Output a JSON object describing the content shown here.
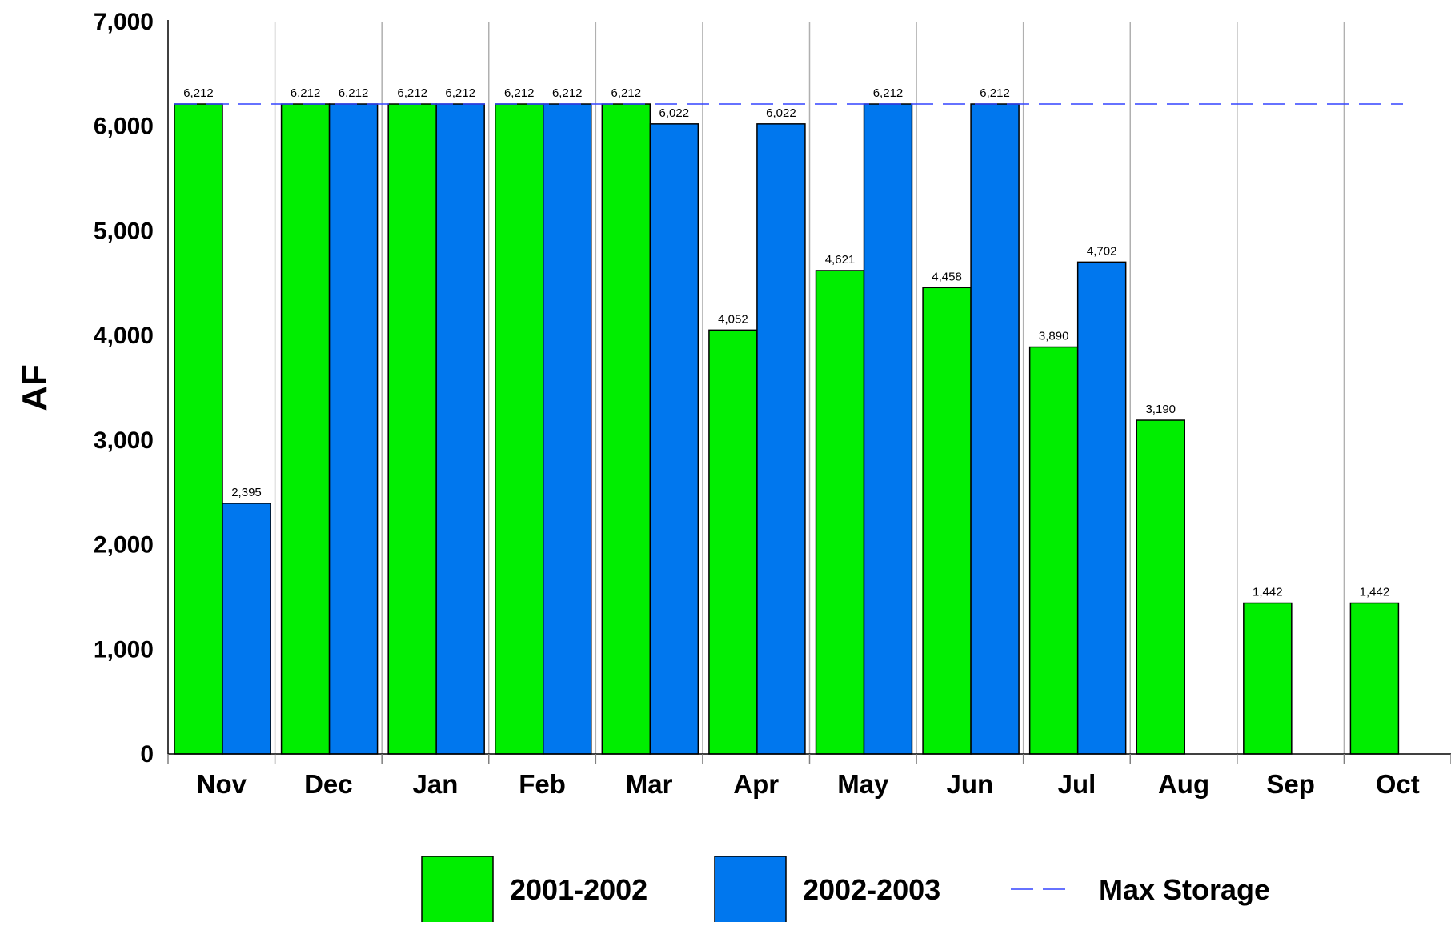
{
  "chart_data": {
    "type": "bar",
    "title": "",
    "xlabel": "",
    "ylabel": "AF",
    "ylim": [
      0,
      7000
    ],
    "yticks": [
      0,
      1000,
      2000,
      3000,
      4000,
      5000,
      6000,
      7000
    ],
    "ytick_labels": [
      "0",
      "1,000",
      "2,000",
      "3,000",
      "4,000",
      "5,000",
      "6,000",
      "7,000"
    ],
    "categories": [
      "Nov",
      "Dec",
      "Jan",
      "Feb",
      "Mar",
      "Apr",
      "May",
      "Jun",
      "Jul",
      "Aug",
      "Sep",
      "Oct"
    ],
    "series": [
      {
        "name": "2001-2002",
        "color": "#00ee00",
        "values": [
          6212,
          6212,
          6212,
          6212,
          6212,
          4052,
          4621,
          4458,
          3890,
          3190,
          1442,
          1442
        ],
        "labels": [
          "6,212",
          "6,212",
          "6,212",
          "6,212",
          "6,212",
          "4,052",
          "4,621",
          "4,458",
          "3,890",
          "3,190",
          "1,442",
          "1,442"
        ]
      },
      {
        "name": "2002-2003",
        "color": "#0077ee",
        "values": [
          2395,
          6212,
          6212,
          6212,
          6022,
          6022,
          6212,
          6212,
          4702,
          null,
          null,
          null
        ],
        "labels": [
          "2,395",
          "6,212",
          "6,212",
          "6,212",
          "6,022",
          "6,022",
          "6,212",
          "6,212",
          "4,702",
          null,
          null,
          null
        ]
      }
    ],
    "reference_line": {
      "name": "Max Storage",
      "value": 6212,
      "color": "#3344ff",
      "style": "dashed"
    },
    "grid": {
      "vertical": true,
      "horizontal": false
    },
    "legend_placement": "bottom"
  }
}
